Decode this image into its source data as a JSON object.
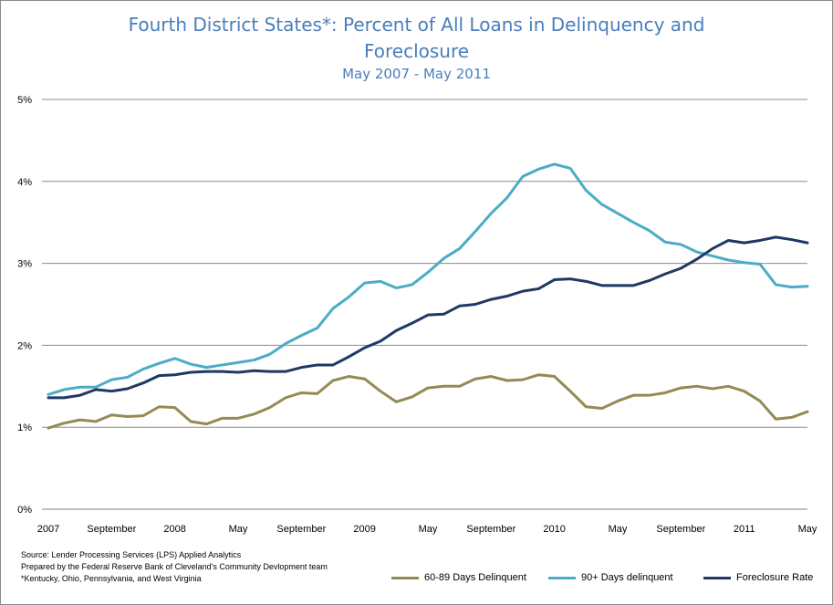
{
  "chart_data": {
    "type": "line",
    "title": "Fourth District States*: Percent of All Loans in Delinquency and Foreclosure",
    "subtitle": "May 2007 - May 2011",
    "ylim": [
      0,
      5
    ],
    "y_ticks": [
      "0%",
      "1%",
      "2%",
      "3%",
      "4%",
      "5%"
    ],
    "x_tick_labels": [
      {
        "index": 0,
        "label": "2007"
      },
      {
        "index": 4,
        "label": "September"
      },
      {
        "index": 8,
        "label": "2008"
      },
      {
        "index": 12,
        "label": "May"
      },
      {
        "index": 16,
        "label": "September"
      },
      {
        "index": 20,
        "label": "2009"
      },
      {
        "index": 24,
        "label": "May"
      },
      {
        "index": 28,
        "label": "September"
      },
      {
        "index": 32,
        "label": "2010"
      },
      {
        "index": 36,
        "label": "May"
      },
      {
        "index": 40,
        "label": "September"
      },
      {
        "index": 44,
        "label": "2011"
      },
      {
        "index": 48,
        "label": "May"
      }
    ],
    "grid": true,
    "legend_position": "bottom-right",
    "series": [
      {
        "name": "60-89 Days Delinquent",
        "color": "#948a54",
        "values": [
          0.99,
          1.05,
          1.09,
          1.07,
          1.15,
          1.13,
          1.14,
          1.25,
          1.24,
          1.07,
          1.04,
          1.11,
          1.11,
          1.16,
          1.24,
          1.36,
          1.42,
          1.41,
          1.57,
          1.62,
          1.59,
          1.44,
          1.31,
          1.37,
          1.48,
          1.5,
          1.5,
          1.59,
          1.62,
          1.57,
          1.58,
          1.64,
          1.62,
          1.44,
          1.25,
          1.23,
          1.32,
          1.39,
          1.39,
          1.42,
          1.48,
          1.5,
          1.47,
          1.5,
          1.44,
          1.32,
          1.1,
          1.12,
          1.19
        ]
      },
      {
        "name": "90+ Days delinquent",
        "color": "#4bacc6",
        "values": [
          1.4,
          1.46,
          1.49,
          1.49,
          1.58,
          1.61,
          1.71,
          1.78,
          1.84,
          1.77,
          1.73,
          1.76,
          1.79,
          1.82,
          1.89,
          2.02,
          2.12,
          2.21,
          2.45,
          2.59,
          2.76,
          2.78,
          2.7,
          2.74,
          2.89,
          3.06,
          3.18,
          3.39,
          3.61,
          3.8,
          4.06,
          4.15,
          4.21,
          4.16,
          3.89,
          3.72,
          3.61,
          3.5,
          3.4,
          3.26,
          3.23,
          3.14,
          3.09,
          3.04,
          3.01,
          2.99,
          2.74,
          2.71,
          2.72
        ]
      },
      {
        "name": "Foreclosure Rate",
        "color": "#1f3864",
        "values": [
          1.36,
          1.36,
          1.39,
          1.46,
          1.44,
          1.47,
          1.54,
          1.63,
          1.64,
          1.67,
          1.68,
          1.68,
          1.67,
          1.69,
          1.68,
          1.68,
          1.73,
          1.76,
          1.76,
          1.86,
          1.97,
          2.05,
          2.18,
          2.27,
          2.37,
          2.38,
          2.48,
          2.5,
          2.56,
          2.6,
          2.66,
          2.69,
          2.8,
          2.81,
          2.78,
          2.73,
          2.73,
          2.73,
          2.79,
          2.87,
          2.94,
          3.05,
          3.18,
          3.28,
          3.25,
          3.28,
          3.32,
          3.29,
          3.25
        ]
      }
    ]
  },
  "notes": [
    "Source: Lender Processing Services (LPS) Applied Analytics",
    "Prepared by the Federal Reserve Bank of Cleveland's Community Devlopment team",
    "*Kentucky, Ohio, Pennsylvania, and West Virginia"
  ]
}
